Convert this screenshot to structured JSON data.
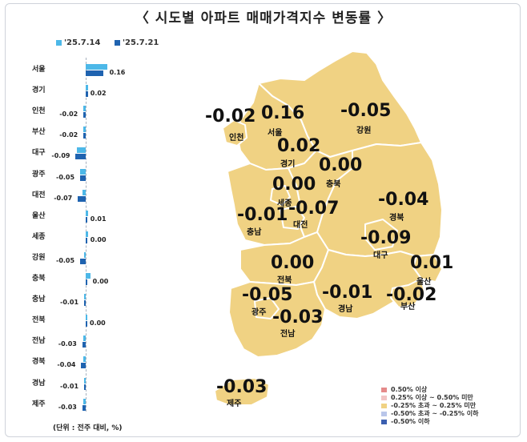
{
  "title": "〈 시도별 아파트 매매가격지수 변동률 〉",
  "unit_note": "(단위 : 전주 대비, %)",
  "colors": {
    "prev": "#4db8e8",
    "curr": "#1f63b0",
    "map_fill": "#f0d283",
    "map_stroke": "#ffffff"
  },
  "chart_data": {
    "type": "bar",
    "orientation": "horizontal",
    "legend": {
      "placement": "top-left",
      "entries": [
        "'25.7.14",
        "'25.7.21"
      ]
    },
    "categories": [
      "서울",
      "경기",
      "인천",
      "부산",
      "대구",
      "광주",
      "대전",
      "울산",
      "세종",
      "강원",
      "충북",
      "충남",
      "전북",
      "전남",
      "경북",
      "경남",
      "제주"
    ],
    "series": [
      {
        "name": "'25.7.14",
        "values": [
          0.19,
          0.02,
          -0.02,
          -0.02,
          -0.08,
          -0.05,
          -0.03,
          0.02,
          0.02,
          -0.01,
          0.04,
          -0.01,
          0.0,
          -0.02,
          -0.02,
          -0.01,
          -0.02
        ]
      },
      {
        "name": "'25.7.21",
        "values": [
          0.16,
          0.02,
          -0.02,
          -0.02,
          -0.09,
          -0.05,
          -0.07,
          0.01,
          0.0,
          -0.05,
          0.0,
          -0.01,
          0.0,
          -0.03,
          -0.04,
          -0.01,
          -0.03
        ]
      }
    ],
    "value_labels": [
      "0.16",
      "0.02",
      "-0.02",
      "-0.02",
      "-0.09",
      "-0.05",
      "-0.07",
      "0.01",
      "0.00",
      "-0.05",
      "0.00",
      "-0.01",
      "0.00",
      "-0.03",
      "-0.04",
      "-0.01",
      "-0.03"
    ]
  },
  "map": {
    "regions": [
      {
        "name": "인천",
        "value": "-0.02"
      },
      {
        "name": "서울",
        "value": "0.16"
      },
      {
        "name": "강원",
        "value": "-0.05"
      },
      {
        "name": "경기",
        "value": "0.02"
      },
      {
        "name": "충북",
        "value": "0.00"
      },
      {
        "name": "세종",
        "value": "0.00"
      },
      {
        "name": "경북",
        "value": "-0.04"
      },
      {
        "name": "대전",
        "value": "-0.07"
      },
      {
        "name": "충남",
        "value": "-0.01"
      },
      {
        "name": "대구",
        "value": "-0.09"
      },
      {
        "name": "울산",
        "value": "0.01"
      },
      {
        "name": "전북",
        "value": "0.00"
      },
      {
        "name": "광주",
        "value": "-0.05"
      },
      {
        "name": "경남",
        "value": "-0.01"
      },
      {
        "name": "부산",
        "value": "-0.02"
      },
      {
        "name": "전남",
        "value": "-0.03"
      },
      {
        "name": "제주",
        "value": "-0.03"
      }
    ],
    "legend": [
      {
        "label": "0.50% 이상",
        "color": "#e58a8a"
      },
      {
        "label": "0.25% 이상 ~ 0.50% 미만",
        "color": "#f2c4c4"
      },
      {
        "label": "-0.25% 초과 ~ 0.25% 미만",
        "color": "#f0d283"
      },
      {
        "label": "-0.50% 초과 ~ -0.25% 이하",
        "color": "#b9c6ea"
      },
      {
        "label": "-0.50% 이하",
        "color": "#3b5fb0"
      }
    ]
  }
}
